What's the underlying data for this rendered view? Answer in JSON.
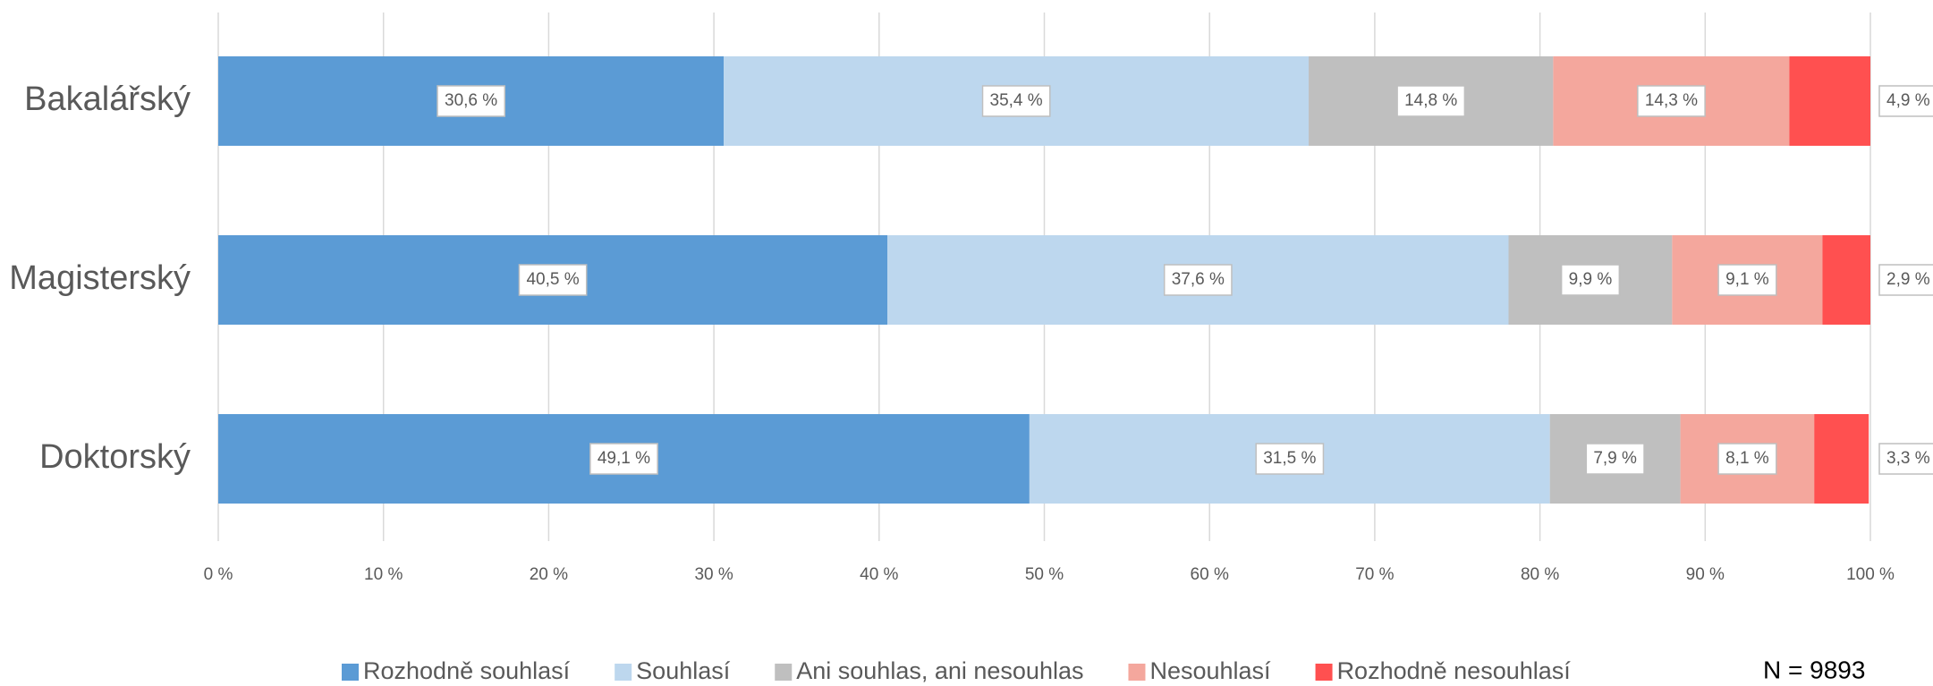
{
  "chart_data": {
    "type": "stacked-barh",
    "categories": [
      "Bakalářský",
      "Magisterský",
      "Doktorský"
    ],
    "series": [
      {
        "name": "Rozhodně souhlasí",
        "color": "#5b9bd5",
        "values": [
          30.6,
          40.5,
          49.1
        ],
        "value_labels": [
          "30,6 %",
          "40,5 %",
          "49,1 %"
        ]
      },
      {
        "name": "Souhlasí",
        "color": "#bdd7ee",
        "values": [
          35.4,
          37.6,
          31.5
        ],
        "value_labels": [
          "35,4 %",
          "37,6 %",
          "31,5 %"
        ]
      },
      {
        "name": "Ani souhlas, ani nesouhlas",
        "color": "#bfbfbf",
        "values": [
          14.8,
          9.9,
          7.9
        ],
        "value_labels": [
          "14,8 %",
          "9,9 %",
          "7,9 %"
        ]
      },
      {
        "name": "Nesouhlasí",
        "color": "#f4a79d",
        "values": [
          14.3,
          9.1,
          8.1
        ],
        "value_labels": [
          "14,3 %",
          "9,1 %",
          "8,1 %"
        ]
      },
      {
        "name": "Rozhodně nesouhlasí",
        "color": "#ff5050",
        "values": [
          4.9,
          2.9,
          3.3
        ],
        "value_labels": [
          "4,9 %",
          "2,9 %",
          "3,3 %"
        ]
      }
    ],
    "xlim": [
      0,
      100
    ],
    "xticks": [
      {
        "value": 0,
        "label": "0 %"
      },
      {
        "value": 10,
        "label": "10 %"
      },
      {
        "value": 20,
        "label": "20 %"
      },
      {
        "value": 30,
        "label": "30 %"
      },
      {
        "value": 40,
        "label": "40 %"
      },
      {
        "value": 50,
        "label": "50 %"
      },
      {
        "value": 60,
        "label": "60 %"
      },
      {
        "value": 70,
        "label": "70 %"
      },
      {
        "value": 80,
        "label": "80 %"
      },
      {
        "value": 90,
        "label": "90 %"
      },
      {
        "value": 100,
        "label": "100 %"
      }
    ],
    "grid": true,
    "legend": "bottom",
    "annotation": "N = 9893"
  }
}
